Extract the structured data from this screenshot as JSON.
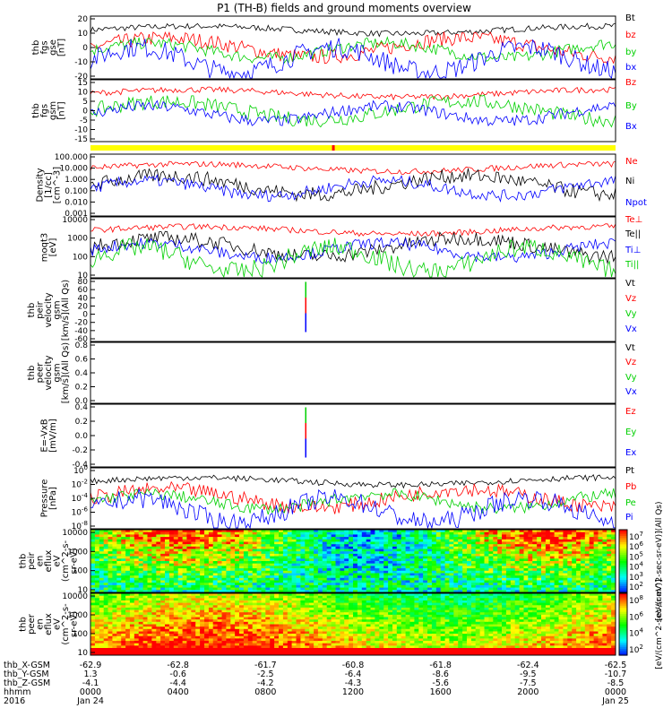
{
  "title": "P1 (TH-B) fields and ground moments overview",
  "colors": {
    "black": "#000000",
    "red": "#ff0000",
    "green": "#00d000",
    "blue": "#0000ff",
    "lime": "#33ff33",
    "yellow": "#ffff00"
  },
  "chart_data": [
    {
      "type": "line",
      "ylabel": [
        "thb",
        "fgs",
        "gse",
        "[nT]"
      ],
      "yticks": [
        "20",
        "10",
        "0",
        "-10",
        "-20"
      ],
      "ylim": [
        -20,
        20
      ],
      "log": false,
      "series": [
        {
          "name": "Bt",
          "color": "#000000"
        },
        {
          "name": "bz",
          "color": "#ff0000"
        },
        {
          "name": "by",
          "color": "#00d000"
        },
        {
          "name": "bx",
          "color": "#0000ff"
        }
      ]
    },
    {
      "type": "line",
      "ylabel": [
        "thb",
        "fgs",
        "gsm",
        "[nT]"
      ],
      "yticks": [
        "15",
        "10",
        "5",
        "0",
        "-5",
        "-10",
        "-15"
      ],
      "ylim": [
        -17,
        16
      ],
      "log": false,
      "series": [
        {
          "name": "Bz",
          "color": "#ff0000"
        },
        {
          "name": "By",
          "color": "#00d000"
        },
        {
          "name": "Bx",
          "color": "#0000ff"
        }
      ]
    },
    {
      "type": "line",
      "ylabel": [
        "Density",
        "[1/cc]",
        "[cm^-3]"
      ],
      "yticks": [
        "100.000",
        "10.000",
        "1.000",
        "0.100",
        "0.010",
        "0.001"
      ],
      "ylim": [
        0.001,
        100
      ],
      "log": true,
      "series": [
        {
          "name": "Ne",
          "color": "#ff0000"
        },
        {
          "name": "Ni",
          "color": "#000000"
        },
        {
          "name": "Npot",
          "color": "#0000ff"
        }
      ]
    },
    {
      "type": "line",
      "ylabel": [
        "moqt3",
        "[eV]"
      ],
      "yticks": [
        "10000",
        "1000",
        "100",
        "10"
      ],
      "ylim": [
        3,
        12000
      ],
      "log": true,
      "series": [
        {
          "name": "Te⊥",
          "color": "#ff0000"
        },
        {
          "name": "Te||",
          "color": "#000000"
        },
        {
          "name": "Ti⊥",
          "color": "#0000ff"
        },
        {
          "name": "Ti||",
          "color": "#00d000"
        }
      ]
    },
    {
      "type": "line",
      "ylabel": [
        "thb",
        "peir",
        "velocity",
        "gsm",
        "[km/s](All Qs)"
      ],
      "yticks": [
        "80",
        "60",
        "40",
        "20",
        "0",
        "-20",
        "-40",
        "-60"
      ],
      "ylim": [
        -60,
        80
      ],
      "log": false,
      "series": [
        {
          "name": "Vt",
          "color": "#000000"
        },
        {
          "name": "Vz",
          "color": "#ff0000"
        },
        {
          "name": "Vy",
          "color": "#00d000"
        },
        {
          "name": "Vx",
          "color": "#0000ff"
        }
      ]
    },
    {
      "type": "line",
      "ylabel": [
        "thb",
        "peer",
        "velocity",
        "gsm",
        "[km/s](All Qs)"
      ],
      "yticks": [
        "0.8",
        "0.6",
        "0.4",
        "0.2",
        "0.0"
      ],
      "ylim": [
        0,
        0.8
      ],
      "log": false,
      "series": [
        {
          "name": "Vt",
          "color": "#000000"
        },
        {
          "name": "Vz",
          "color": "#ff0000"
        },
        {
          "name": "Vy",
          "color": "#00d000"
        },
        {
          "name": "Vx",
          "color": "#0000ff"
        }
      ]
    },
    {
      "type": "line",
      "ylabel": [
        "E=-VxB",
        "[mV/m]"
      ],
      "yticks": [
        "0.4",
        "0.2",
        "0.0",
        "-0.2",
        "-0.4"
      ],
      "ylim": [
        -0.4,
        0.4
      ],
      "log": false,
      "series": [
        {
          "name": "Ez",
          "color": "#ff0000"
        },
        {
          "name": "Ey",
          "color": "#00d000"
        },
        {
          "name": "Ex",
          "color": "#0000ff"
        }
      ]
    },
    {
      "type": "line",
      "ylabel": [
        "Pressure",
        "[nPa]"
      ],
      "yticks": [
        "10^0",
        "10^-2",
        "10^-4",
        "10^-6",
        "10^-8"
      ],
      "ylim": [
        1e-08,
        1
      ],
      "log": true,
      "series": [
        {
          "name": "Pt",
          "color": "#000000"
        },
        {
          "name": "Pb",
          "color": "#ff0000"
        },
        {
          "name": "Pe",
          "color": "#00d000"
        },
        {
          "name": "Pi",
          "color": "#0000ff"
        }
      ]
    },
    {
      "type": "heatmap",
      "ylabel": [
        "thb",
        "peir",
        "en",
        "eflux",
        "eV",
        "(cm^2-s-",
        "sr-eV)"
      ],
      "yticks": [
        "10000",
        "1000",
        "100",
        "10"
      ],
      "ylim": [
        5,
        25000
      ],
      "log": true,
      "colorbar": {
        "ticks": [
          "10^7",
          "10^6",
          "10^5",
          "10^4",
          "10^3",
          "10^2"
        ],
        "label": "[eV/(cm^2-sec-sr-eV)](All Qs)"
      }
    },
    {
      "type": "heatmap",
      "ylabel": [
        "thb",
        "peer",
        "en",
        "eflux",
        "eV",
        "(cm^2-s-",
        "sr-eV)"
      ],
      "yticks": [
        "10000",
        "1000",
        "100",
        "10"
      ],
      "ylim": [
        5,
        25000
      ],
      "log": true,
      "colorbar": {
        "ticks": [
          "10^8",
          "10^6",
          "10^4",
          "10^2"
        ],
        "label": "[eV/(cm^2-sec-sr-eV)]"
      }
    }
  ],
  "footer": {
    "rows": [
      {
        "label": "thb_X-GSM",
        "values": [
          "-62.9",
          "-62.8",
          "-61.7",
          "-60.8",
          "-61.8",
          "-62.4",
          "-62.5"
        ]
      },
      {
        "label": "thb_Y-GSM",
        "values": [
          "1.3",
          "-0.6",
          "-2.5",
          "-6.4",
          "-8.6",
          "-9.5",
          "-10.7"
        ]
      },
      {
        "label": "thb_Z-GSM",
        "values": [
          "-4.1",
          "-4.4",
          "-4.2",
          "-4.3",
          "-5.6",
          "-7.5",
          "-8.5"
        ]
      },
      {
        "label": "hhmm",
        "values": [
          "0000",
          "0400",
          "0800",
          "1200",
          "1600",
          "2000",
          "0000"
        ]
      },
      {
        "label": "2016",
        "values": [
          "Jan 24",
          "",
          "",
          "",
          "",
          "",
          "Jan 25"
        ]
      }
    ]
  }
}
